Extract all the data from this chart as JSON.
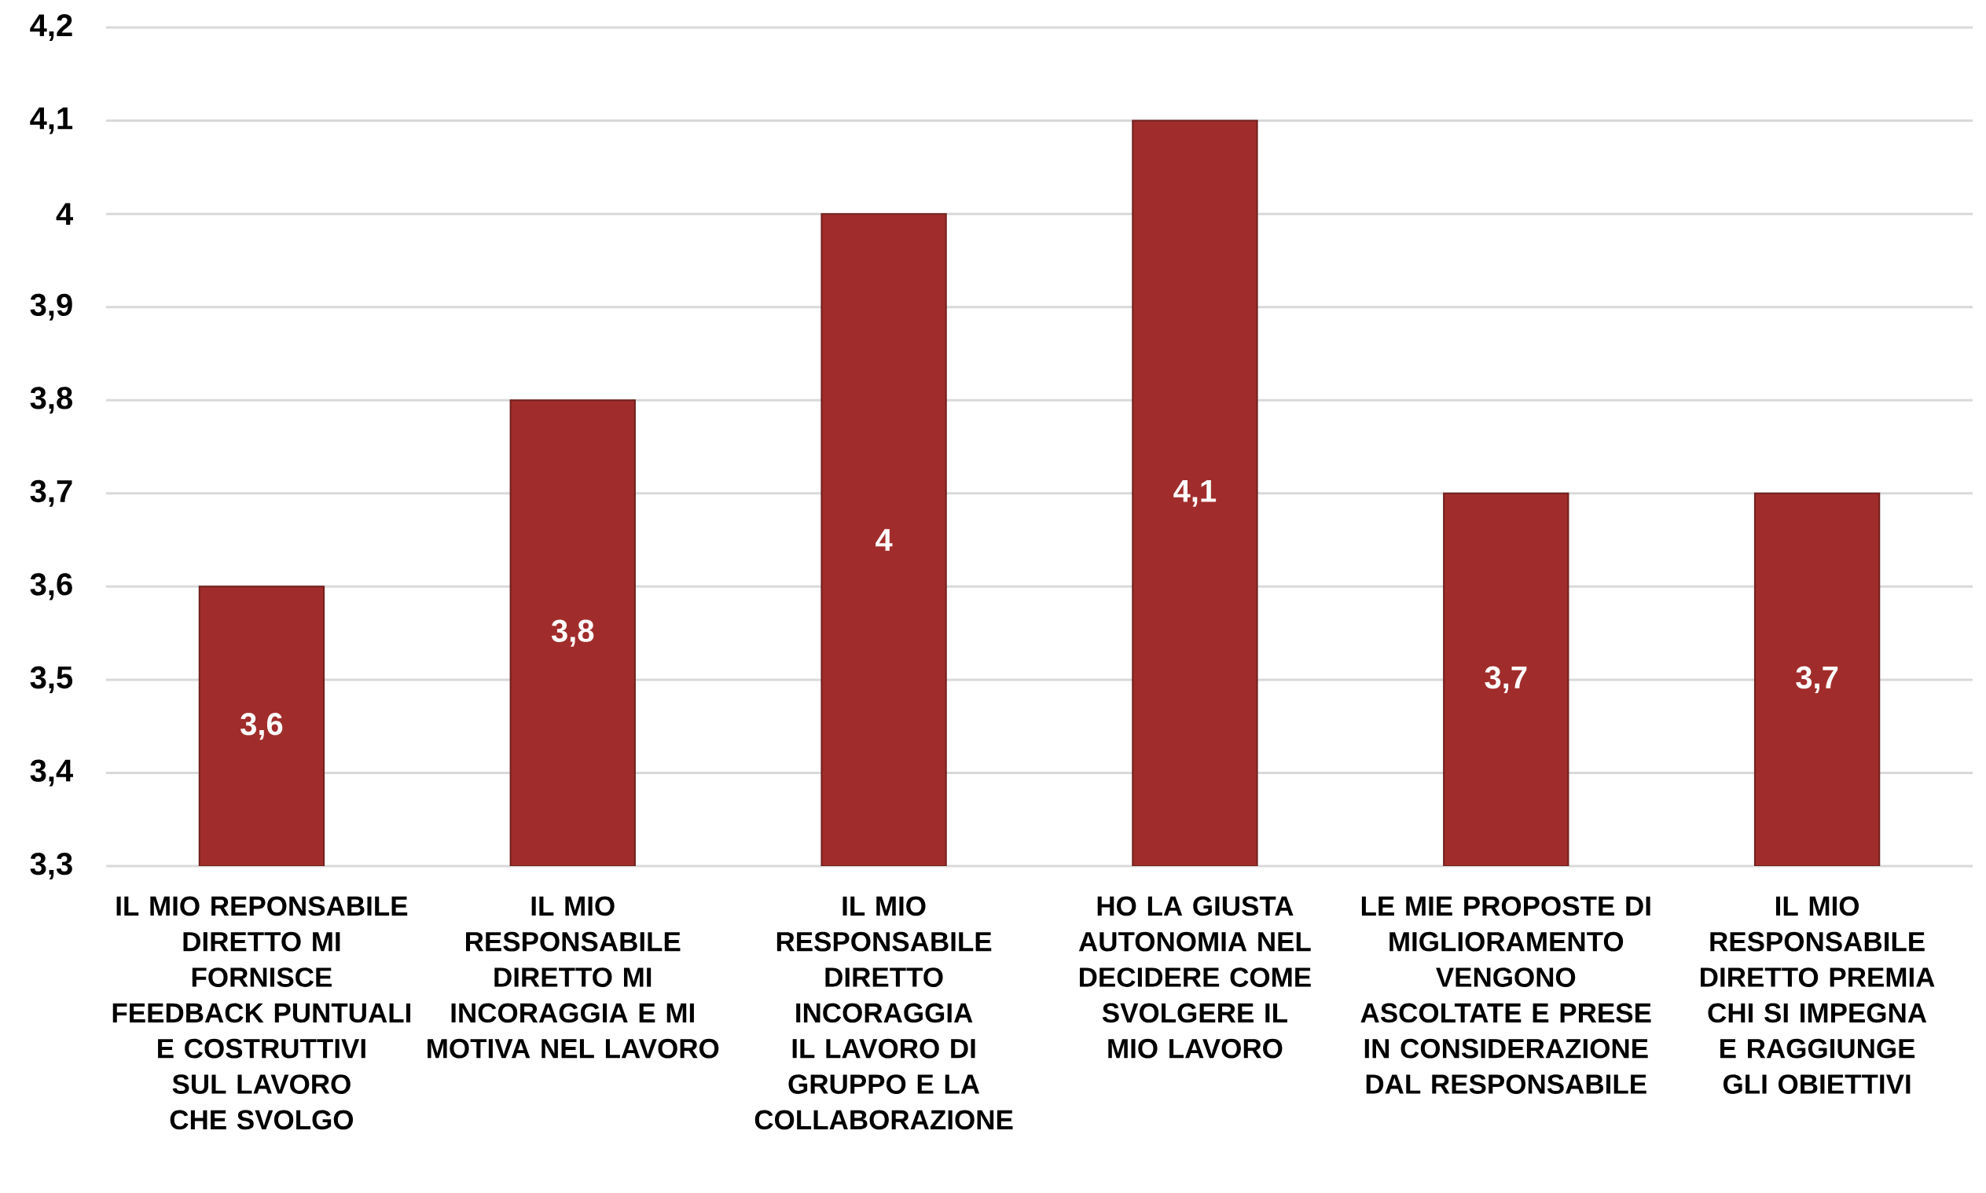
{
  "chart_data": {
    "type": "bar",
    "categories": [
      "IL MIO REPONSABILE DIRETTO MI FORNISCE FEEDBACK PUNTUALI E COSTRUTTIVI SUL LAVORO CHE SVOLGO",
      "IL MIO RESPONSABILE DIRETTO MI INCORAGGIA E MI MOTIVA NEL LAVORO",
      "IL MIO RESPONSABILE DIRETTO INCORAGGIA IL LAVORO DI GRUPPO E LA COLLABORAZIONE",
      "HO LA GIUSTA AUTONOMIA NEL DECIDERE COME SVOLGERE IL MIO LAVORO",
      "LE MIE PROPOSTE DI MIGLIORAMENTO VENGONO ASCOLTATE E PRESE IN CONSIDERAZIONE DAL RESPONSABILE",
      "IL MIO RESPONSABILE DIRETTO PREMIA CHI SI IMPEGNA E RAGGIUNGE GLI OBIETTIVI"
    ],
    "values": [
      3.6,
      3.8,
      4,
      4.1,
      3.7,
      3.7
    ],
    "value_labels": [
      "3,6",
      "3,8",
      "4",
      "4,1",
      "3,7",
      "3,7"
    ],
    "color": "#a02d2b",
    "ylim": [
      3.3,
      4.2
    ],
    "yticks": [
      {
        "value": 3.3,
        "label": "3,3"
      },
      {
        "value": 3.4,
        "label": "3,4"
      },
      {
        "value": 3.5,
        "label": "3,5"
      },
      {
        "value": 3.6,
        "label": "3,6"
      },
      {
        "value": 3.7,
        "label": "3,7"
      },
      {
        "value": 3.8,
        "label": "3,8"
      },
      {
        "value": 3.9,
        "label": "3,9"
      },
      4,
      {
        "value": 4.1,
        "label": "4,1"
      },
      {
        "value": 4.2,
        "label": "4,2"
      }
    ],
    "grid": "y"
  }
}
